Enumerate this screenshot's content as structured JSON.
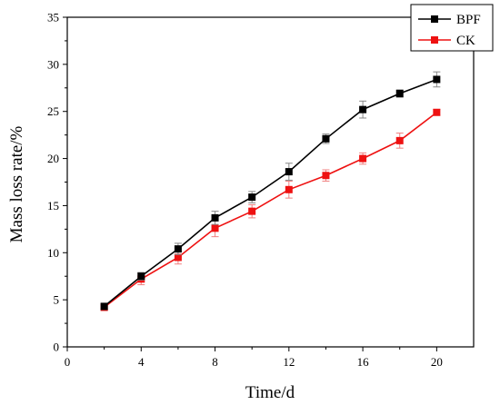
{
  "chart_data": {
    "type": "line",
    "xlabel": "Time/d",
    "ylabel": "Mass loss rate/%",
    "xlim": [
      0,
      22
    ],
    "ylim": [
      0,
      35
    ],
    "x_ticks": [
      0,
      4,
      8,
      12,
      16,
      20
    ],
    "y_ticks": [
      0,
      5,
      10,
      15,
      20,
      25,
      30,
      35
    ],
    "grid": false,
    "legend_position": "top-right",
    "error_bars": true,
    "x": [
      2,
      4,
      6,
      8,
      10,
      12,
      14,
      16,
      18,
      20
    ],
    "series": [
      {
        "name": "BPF",
        "color": "#000000",
        "marker": "square",
        "values": [
          4.3,
          7.5,
          10.4,
          13.7,
          15.9,
          18.6,
          22.1,
          25.2,
          26.9,
          28.4
        ],
        "errors": [
          0.3,
          0.4,
          0.6,
          0.7,
          0.6,
          0.9,
          0.5,
          0.9,
          0.4,
          0.8
        ]
      },
      {
        "name": "CK",
        "color": "#ee1111",
        "marker": "square",
        "values": [
          4.2,
          7.2,
          9.5,
          12.6,
          14.4,
          16.7,
          18.2,
          20.0,
          21.9,
          24.9
        ],
        "errors": [
          0.3,
          0.6,
          0.7,
          0.9,
          0.7,
          0.9,
          0.6,
          0.6,
          0.8,
          0.3
        ]
      }
    ]
  }
}
